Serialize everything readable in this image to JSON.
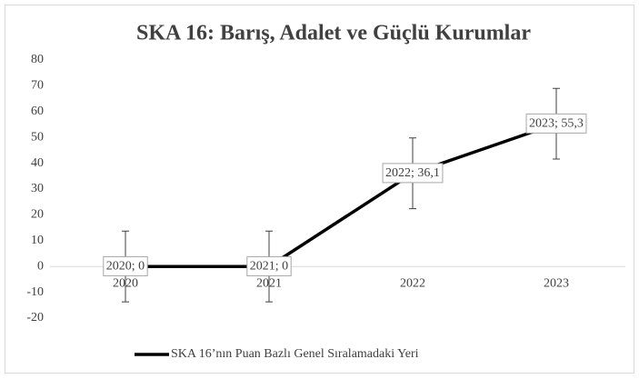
{
  "chart_data": {
    "type": "line",
    "title": "SKA 16: Barış, Adalet ve Güçlü Kurumlar",
    "categories": [
      "2020",
      "2021",
      "2022",
      "2023"
    ],
    "series": [
      {
        "name": "SKA 16’nın Puan Bazlı Genel Sıralamadaki Yeri",
        "color": "#000000",
        "values": [
          0,
          0,
          36.1,
          55.3
        ],
        "errors": [
          13.7,
          13.7,
          13.7,
          13.7
        ],
        "value_labels": [
          "2020; 0",
          "2021; 0",
          "2022; 36,1",
          "2023; 55,3"
        ]
      }
    ],
    "ylim": [
      -20,
      80
    ],
    "yticks": [
      -20,
      -10,
      0,
      10,
      20,
      30,
      40,
      50,
      60,
      70,
      80
    ],
    "grid": false,
    "legend": "bottom"
  }
}
